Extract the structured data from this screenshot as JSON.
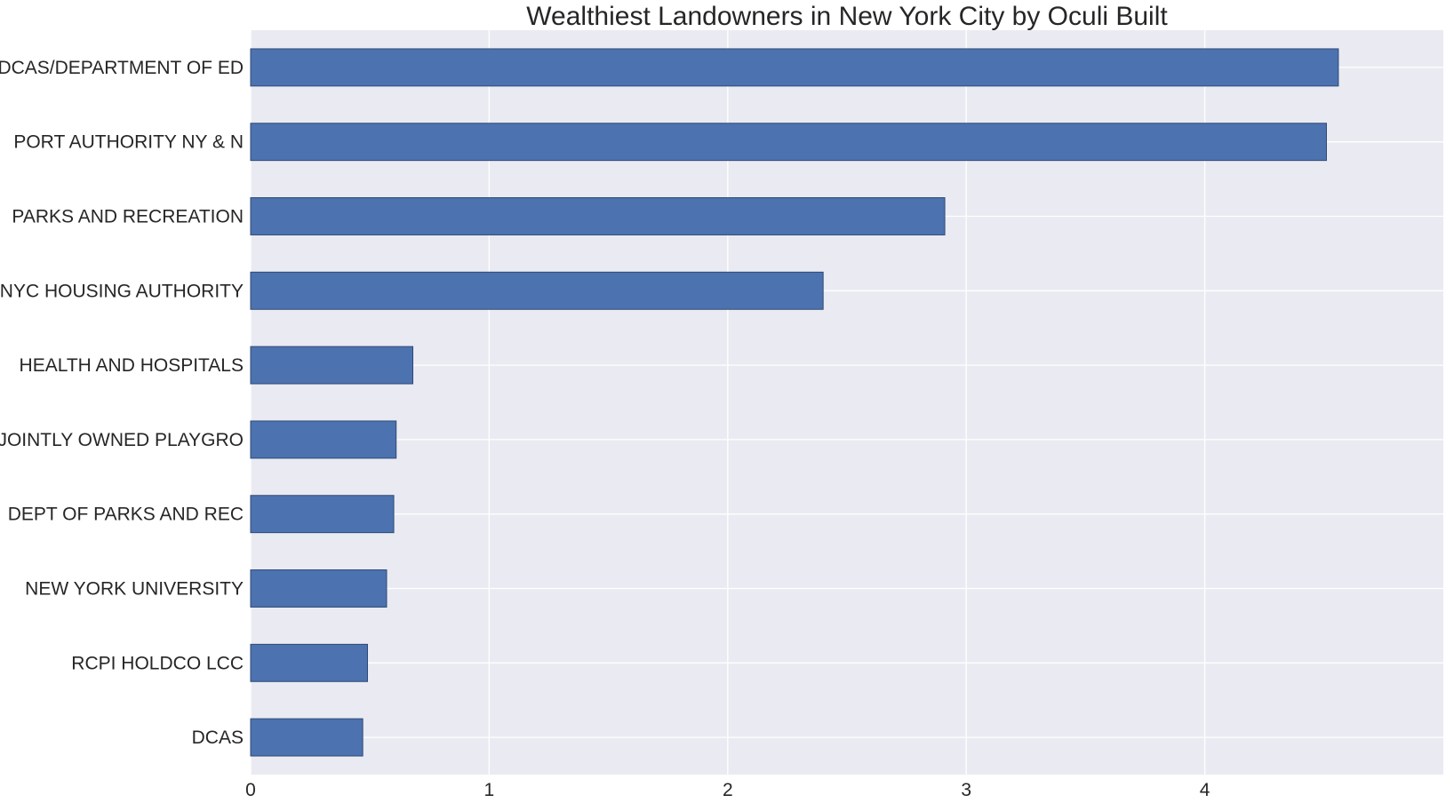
{
  "chart_data": {
    "type": "bar",
    "orientation": "horizontal",
    "title": "Wealthiest Landowners in New York City by Oculi Built",
    "xlabel": "",
    "ylabel": "",
    "categories": [
      "DCAS/DEPARTMENT OF ED",
      "PORT AUTHORITY NY & N",
      "PARKS AND RECREATION",
      "NYC HOUSING AUTHORITY",
      "HEALTH AND HOSPITALS",
      "JOINTLY OWNED PLAYGRO",
      "DEPT OF PARKS AND REC",
      "NEW YORK UNIVERSITY",
      "RCPI HOLDCO LCC",
      "DCAS"
    ],
    "values": [
      4.56,
      4.51,
      2.91,
      2.4,
      0.68,
      0.61,
      0.6,
      0.57,
      0.49,
      0.47
    ],
    "xlim": [
      0,
      5.0
    ],
    "xticks": [
      0,
      1,
      2,
      3,
      4
    ],
    "grid": true,
    "colors": {
      "bar": "#4c72b0",
      "bar_edge": "#2f4a75",
      "plot_bg": "#eaeaf2",
      "grid": "#ffffff",
      "text": "#262626"
    }
  }
}
